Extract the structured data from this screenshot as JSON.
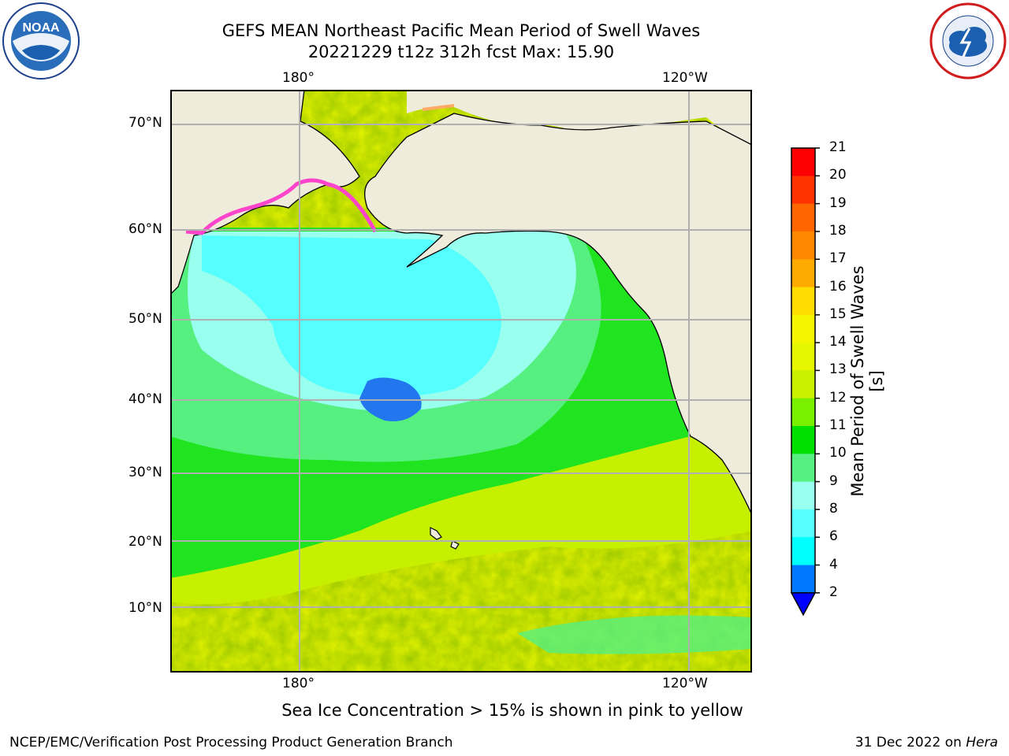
{
  "title_line1": "GEFS MEAN Northeast Pacific Mean Period of Swell Waves",
  "title_line2": "20221229 t12z 312h fcst   Max: 15.90",
  "lon_labels": [
    "180°",
    "120°W"
  ],
  "lat_labels": [
    "70°N",
    "60°N",
    "50°N",
    "40°N",
    "30°N",
    "20°N",
    "10°N"
  ],
  "colorbar": {
    "label": "Mean Period of Swell Waves [s]",
    "ticks": [
      "21",
      "20",
      "19",
      "18",
      "17",
      "16",
      "15",
      "14",
      "13",
      "12",
      "11",
      "10",
      "9",
      "8",
      "6",
      "4",
      "2"
    ],
    "colors": [
      "#ff0000",
      "#ff3300",
      "#ff6600",
      "#ff8800",
      "#ffaa00",
      "#ffdd00",
      "#f5f500",
      "#e6f500",
      "#c8f000",
      "#78f000",
      "#00e000",
      "#55f080",
      "#99ffee",
      "#55ffff",
      "#00ffff",
      "#0077ff",
      "#0000ff"
    ]
  },
  "ice_note": "Sea Ice Concentration > 15% is shown in pink to yellow",
  "footer_left": "NCEP/EMC/Verification Post Processing Product Generation Branch",
  "footer_right_prefix": "31 Dec 2022 on ",
  "footer_right_host": "Hera",
  "logos": {
    "left": "NOAA",
    "right": "NATIONAL WEATHER SERVICE"
  },
  "colors": {
    "land": "#efecdc",
    "grid": "#b0b0b0"
  }
}
